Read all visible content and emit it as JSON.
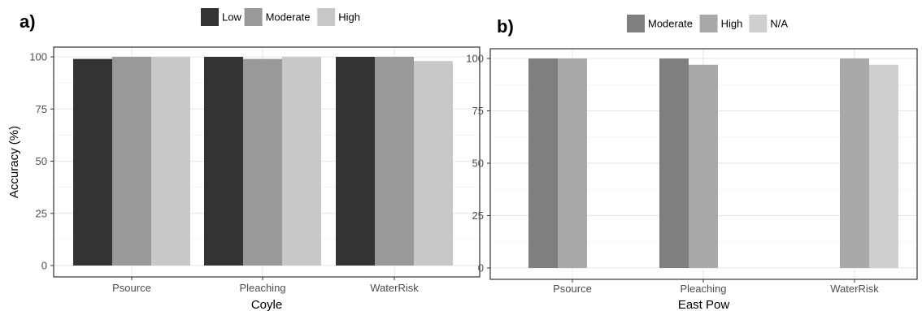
{
  "chart_data": [
    {
      "type": "bar",
      "panel_label": "a)",
      "xlabel": "Coyle",
      "ylabel": "Accuracy (%)",
      "categories": [
        "Psource",
        "Pleaching",
        "WaterRisk"
      ],
      "ylim": [
        0,
        100
      ],
      "yticks": [
        0,
        25,
        50,
        75,
        100
      ],
      "grid": true,
      "legend_position": "top",
      "series": [
        {
          "name": "Low",
          "color": "#333333",
          "values": [
            99,
            100,
            100
          ]
        },
        {
          "name": "Moderate",
          "color": "#999999",
          "values": [
            100,
            99,
            100
          ]
        },
        {
          "name": "High",
          "color": "#c8c8c8",
          "values": [
            100,
            100,
            98
          ]
        }
      ]
    },
    {
      "type": "bar",
      "panel_label": "b)",
      "xlabel": "East Pow",
      "ylabel": "",
      "categories": [
        "Psource",
        "Pleaching",
        "WaterRisk"
      ],
      "ylim": [
        0,
        100
      ],
      "yticks": [
        0,
        25,
        50,
        75,
        100
      ],
      "grid": true,
      "legend_position": "top",
      "series": [
        {
          "name": "Moderate",
          "color": "#7f7f7f",
          "values": [
            100,
            100,
            null
          ]
        },
        {
          "name": "High",
          "color": "#a9a9a9",
          "values": [
            100,
            97,
            100
          ]
        },
        {
          "name": "N/A",
          "color": "#cfcfcf",
          "values": [
            null,
            null,
            97
          ]
        }
      ]
    }
  ]
}
